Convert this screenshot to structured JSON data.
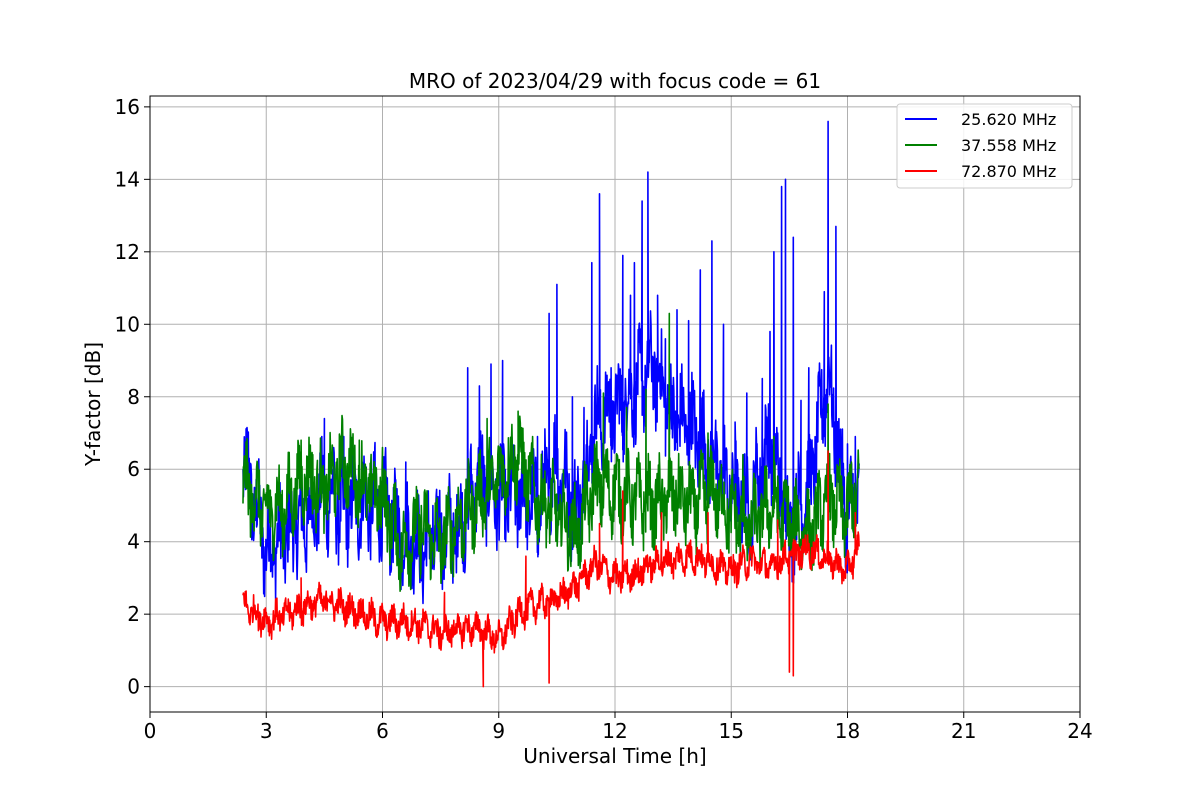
{
  "chart_data": {
    "type": "line",
    "title": "MRO of 2023/04/29 with focus code = 61",
    "xlabel": "Universal Time [h]",
    "ylabel": "Y-factor [dB]",
    "xlim": [
      0,
      24
    ],
    "ylim": [
      -0.7,
      16.3
    ],
    "xticks": [
      0,
      3,
      6,
      9,
      12,
      15,
      18,
      21,
      24
    ],
    "yticks": [
      0,
      2,
      4,
      6,
      8,
      10,
      12,
      14,
      16
    ],
    "grid": true,
    "legend_position": "top-right",
    "x": [
      2.4,
      3.0,
      3.5,
      4.0,
      4.5,
      5.0,
      5.5,
      6.0,
      6.5,
      7.0,
      7.5,
      8.0,
      8.5,
      9.0,
      9.5,
      10.0,
      10.5,
      11.0,
      11.5,
      12.0,
      12.5,
      13.0,
      13.5,
      14.0,
      14.5,
      15.0,
      15.5,
      16.0,
      16.5,
      17.0,
      17.5,
      18.0,
      18.3
    ],
    "series": [
      {
        "name": "25.620 MHz",
        "color": "#0000ff",
        "values": [
          6.3,
          3.8,
          4.2,
          4.6,
          5.3,
          4.9,
          5.1,
          5.0,
          4.2,
          3.8,
          4.2,
          4.4,
          5.8,
          5.2,
          5.3,
          5.0,
          6.2,
          4.8,
          7.3,
          7.6,
          8.2,
          8.8,
          7.4,
          7.1,
          6.3,
          5.4,
          5.0,
          6.8,
          4.3,
          5.5,
          8.6,
          4.6,
          5.6
        ],
        "peaks": [
          [
            3.6,
            5.5
          ],
          [
            4.5,
            7.4
          ],
          [
            5.0,
            6.9
          ],
          [
            5.8,
            6.6
          ],
          [
            6.6,
            6.2
          ],
          [
            7.3,
            5.0
          ],
          [
            8.2,
            8.8
          ],
          [
            8.5,
            8.3
          ],
          [
            8.8,
            8.9
          ],
          [
            9.1,
            9.0
          ],
          [
            9.6,
            6.2
          ],
          [
            10.0,
            6.9
          ],
          [
            10.3,
            10.3
          ],
          [
            10.5,
            11.1
          ],
          [
            10.9,
            8.0
          ],
          [
            11.2,
            7.7
          ],
          [
            11.4,
            11.7
          ],
          [
            11.6,
            13.6
          ],
          [
            11.9,
            8.8
          ],
          [
            12.2,
            11.9
          ],
          [
            12.4,
            10.8
          ],
          [
            12.5,
            11.7
          ],
          [
            12.7,
            13.4
          ],
          [
            12.85,
            14.2
          ],
          [
            13.1,
            10.8
          ],
          [
            13.3,
            9.6
          ],
          [
            13.6,
            10.4
          ],
          [
            13.9,
            10.1
          ],
          [
            14.2,
            11.5
          ],
          [
            14.5,
            12.3
          ],
          [
            14.8,
            10.0
          ],
          [
            15.1,
            7.3
          ],
          [
            15.4,
            8.1
          ],
          [
            15.8,
            8.5
          ],
          [
            16.0,
            9.8
          ],
          [
            16.1,
            12.0
          ],
          [
            16.3,
            13.8
          ],
          [
            16.4,
            14.0
          ],
          [
            16.6,
            12.4
          ],
          [
            16.8,
            7.9
          ],
          [
            17.0,
            8.8
          ],
          [
            17.2,
            6.2
          ],
          [
            17.4,
            10.9
          ],
          [
            17.5,
            15.6
          ],
          [
            17.7,
            12.7
          ],
          [
            18.0,
            6.7
          ],
          [
            18.2,
            6.9
          ]
        ]
      },
      {
        "name": "37.558 MHz",
        "color": "#008000",
        "values": [
          5.6,
          4.8,
          5.0,
          5.8,
          5.4,
          6.2,
          5.6,
          5.2,
          3.8,
          4.4,
          4.0,
          4.6,
          5.2,
          5.8,
          6.4,
          5.2,
          4.8,
          4.2,
          5.6,
          5.4,
          5.2,
          5.0,
          5.3,
          5.0,
          5.4,
          4.8,
          4.4,
          5.0,
          4.6,
          4.2,
          5.2,
          4.8,
          5.6
        ],
        "peaks": [
          [
            3.9,
            6.8
          ],
          [
            4.2,
            6.4
          ],
          [
            5.4,
            6.8
          ],
          [
            6.0,
            6.6
          ],
          [
            7.0,
            5.0
          ],
          [
            8.7,
            7.4
          ],
          [
            9.5,
            7.6
          ],
          [
            11.7,
            8.1
          ],
          [
            12.3,
            7.7
          ],
          [
            12.8,
            8.2
          ],
          [
            13.4,
            10.3
          ],
          [
            14.4,
            7.0
          ],
          [
            15.3,
            6.4
          ],
          [
            16.1,
            6.9
          ],
          [
            17.5,
            7.8
          ],
          [
            18.1,
            6.2
          ]
        ]
      },
      {
        "name": "72.870 MHz",
        "color": "#ff0000",
        "values": [
          2.3,
          1.8,
          2.0,
          2.2,
          2.4,
          2.2,
          2.0,
          1.8,
          1.8,
          1.7,
          1.5,
          1.6,
          1.6,
          1.3,
          2.0,
          2.3,
          2.4,
          2.8,
          3.4,
          3.0,
          3.1,
          3.4,
          3.5,
          3.6,
          3.4,
          3.2,
          3.5,
          3.3,
          3.6,
          3.8,
          3.5,
          3.2,
          3.9
        ],
        "peaks": [
          [
            3.9,
            3.0
          ],
          [
            7.6,
            2.6
          ],
          [
            9.7,
            3.6
          ],
          [
            11.6,
            4.5
          ],
          [
            12.2,
            5.4
          ],
          [
            13.2,
            4.8
          ],
          [
            14.4,
            4.8
          ],
          [
            16.2,
            4.6
          ],
          [
            17.5,
            6.5
          ],
          [
            18.2,
            4.8
          ]
        ],
        "dips": [
          [
            8.6,
            0.0
          ],
          [
            10.3,
            0.1
          ],
          [
            16.5,
            0.4
          ],
          [
            16.6,
            0.3
          ]
        ]
      }
    ]
  }
}
